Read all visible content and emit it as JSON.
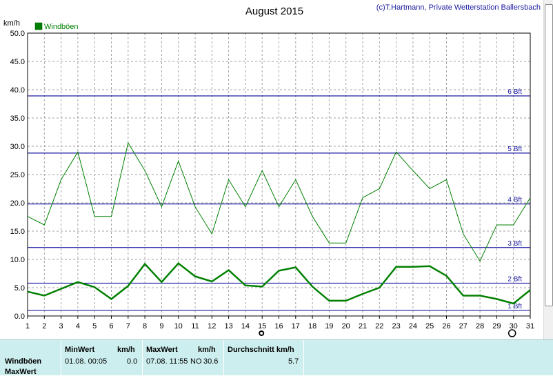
{
  "header": {
    "title": "August 2015",
    "copyright": "(c)T.Hartmann, Private Wetterstation Ballersbach",
    "unit_label": "km/h"
  },
  "chart_data": {
    "type": "line",
    "title": "August 2015",
    "ylabel": "km/h",
    "xlabel": "",
    "ylim": [
      0,
      50
    ],
    "yticks": [
      "0.0",
      "5.0",
      "10.0",
      "15.0",
      "20.0",
      "25.0",
      "30.0",
      "35.0",
      "40.0",
      "45.0",
      "50.0"
    ],
    "x": [
      1,
      2,
      3,
      4,
      5,
      6,
      7,
      8,
      9,
      10,
      11,
      12,
      13,
      14,
      15,
      16,
      17,
      18,
      19,
      20,
      21,
      22,
      23,
      24,
      25,
      26,
      27,
      28,
      29,
      30,
      31
    ],
    "grid": true,
    "legend": {
      "position": "top-left",
      "label": "Windböen",
      "color": "#008000"
    },
    "series": [
      {
        "name": "Windböen",
        "color": "#008000",
        "width": 1,
        "values": [
          17.6,
          16.1,
          24.1,
          29.0,
          17.6,
          17.6,
          30.6,
          25.7,
          19.3,
          27.4,
          19.3,
          14.5,
          24.1,
          19.3,
          25.7,
          19.3,
          24.1,
          17.6,
          12.9,
          12.9,
          20.9,
          22.5,
          29.0,
          25.7,
          22.5,
          24.1,
          14.5,
          9.7,
          16.1,
          16.1,
          20.9
        ]
      },
      {
        "name": "",
        "color": "#008000",
        "width": 2.5,
        "values": [
          4.3,
          3.6,
          4.8,
          6.0,
          5.1,
          3.0,
          5.3,
          9.2,
          6.0,
          9.3,
          7.0,
          6.1,
          8.1,
          5.4,
          5.2,
          8.0,
          8.6,
          5.2,
          2.7,
          2.7,
          3.9,
          5.0,
          8.7,
          8.7,
          8.8,
          7.1,
          3.6,
          3.6,
          3.0,
          2.2,
          4.6
        ]
      }
    ],
    "reference_lines": [
      {
        "label": "1 Bft",
        "value": 1.0
      },
      {
        "label": "2 Bft",
        "value": 5.8
      },
      {
        "label": "3 Bft",
        "value": 12.1
      },
      {
        "label": "4 Bft",
        "value": 19.8
      },
      {
        "label": "5 Bft",
        "value": 28.8
      },
      {
        "label": "6 Bft",
        "value": 38.9
      }
    ],
    "markers": [
      {
        "day": 15,
        "symbol": "filled-circle"
      },
      {
        "day": 30,
        "symbol": "open-circle"
      }
    ],
    "colors": {
      "axis_text": "#000000",
      "ref_line": "#1a1aa0",
      "ref_label": "#1a1aa0",
      "grid": "#a0a0a0",
      "copyright": "#1a1aa0"
    }
  },
  "stats": {
    "row1_label": "Windböen",
    "row2_label": "MaxWert",
    "min_header": "MinWert",
    "min_unit": "km/h",
    "min_datetime": "01.08.  00:05",
    "min_value": "0.0",
    "max_header": "MaxWert",
    "max_unit": "km/h",
    "max_datetime": "07.08.  11:55",
    "max_dir": "NO",
    "max_value": "30.6",
    "avg_header": "Durchschnitt km/h",
    "avg_value": "5.7"
  }
}
